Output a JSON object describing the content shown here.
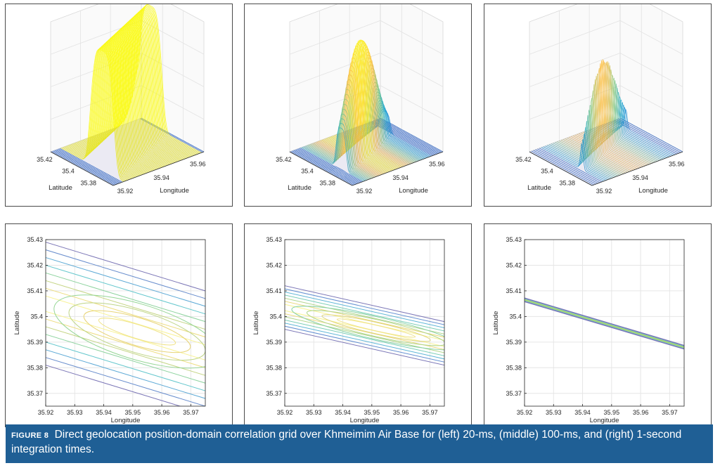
{
  "figure": {
    "label": "FIGURE 8",
    "caption": "Direct geolocation position-domain correlation grid over Khmeimim Air Base for (left) 20-ms, (middle) 100-ms, and (right) 1-second integration times."
  },
  "chart_data": [
    {
      "type": "surface3d",
      "panel": "top-left",
      "integration": "20-ms",
      "xlabel": "Longitude",
      "ylabel": "Latitude",
      "x_ticks": [
        "35.92",
        "35.94",
        "35.96"
      ],
      "y_ticks": [
        "35.38",
        "35.4",
        "35.42"
      ]
    },
    {
      "type": "surface3d",
      "panel": "top-middle",
      "integration": "100-ms",
      "xlabel": "Longitude",
      "ylabel": "Latitude",
      "x_ticks": [
        "35.92",
        "35.94",
        "35.96"
      ],
      "y_ticks": [
        "35.38",
        "35.4",
        "35.42"
      ]
    },
    {
      "type": "surface3d",
      "panel": "top-right",
      "integration": "1-second",
      "xlabel": "Longitude",
      "ylabel": "Latitude",
      "x_ticks": [
        "35.92",
        "35.94",
        "35.96"
      ],
      "y_ticks": [
        "35.38",
        "35.4",
        "35.42"
      ]
    },
    {
      "type": "contour",
      "panel": "bottom-left",
      "integration": "20-ms",
      "xlabel": "Longitude",
      "ylabel": "Latitude",
      "xlim": [
        35.92,
        35.975
      ],
      "ylim": [
        35.365,
        35.43
      ],
      "x_ticks": [
        "35.92",
        "35.93",
        "35.94",
        "35.95",
        "35.96",
        "35.97"
      ],
      "y_ticks": [
        "35.37",
        "35.38",
        "35.39",
        "35.4",
        "35.41",
        "35.42",
        "35.43"
      ],
      "ridge": {
        "lon": [
          35.92,
          35.975
        ],
        "lat": [
          35.405,
          35.386
        ]
      },
      "halfwidth": 0.024,
      "levels": 8
    },
    {
      "type": "contour",
      "panel": "bottom-middle",
      "integration": "100-ms",
      "xlabel": "Longitude",
      "ylabel": "Latitude",
      "xlim": [
        35.92,
        35.975
      ],
      "ylim": [
        35.365,
        35.43
      ],
      "x_ticks": [
        "35.92",
        "35.93",
        "35.94",
        "35.95",
        "35.96",
        "35.97"
      ],
      "y_ticks": [
        "35.37",
        "35.38",
        "35.39",
        "35.4",
        "35.41",
        "35.42",
        "35.43"
      ],
      "ridge": {
        "lon": [
          35.92,
          35.975
        ],
        "lat": [
          35.4035,
          35.3895
        ]
      },
      "halfwidth": 0.0085,
      "levels": 7
    },
    {
      "type": "contour",
      "panel": "bottom-right",
      "integration": "1-second",
      "xlabel": "Longitude",
      "ylabel": "Latitude",
      "xlim": [
        35.92,
        35.975
      ],
      "ylim": [
        35.365,
        35.43
      ],
      "x_ticks": [
        "35.92",
        "35.93",
        "35.94",
        "35.95",
        "35.96",
        "35.97"
      ],
      "y_ticks": [
        "35.37",
        "35.38",
        "35.39",
        "35.4",
        "35.41",
        "35.42",
        "35.43"
      ],
      "ridge": {
        "lon": [
          35.92,
          35.975
        ],
        "lat": [
          35.4065,
          35.388
        ]
      },
      "halfwidth": 0.0007,
      "levels": 4
    }
  ]
}
